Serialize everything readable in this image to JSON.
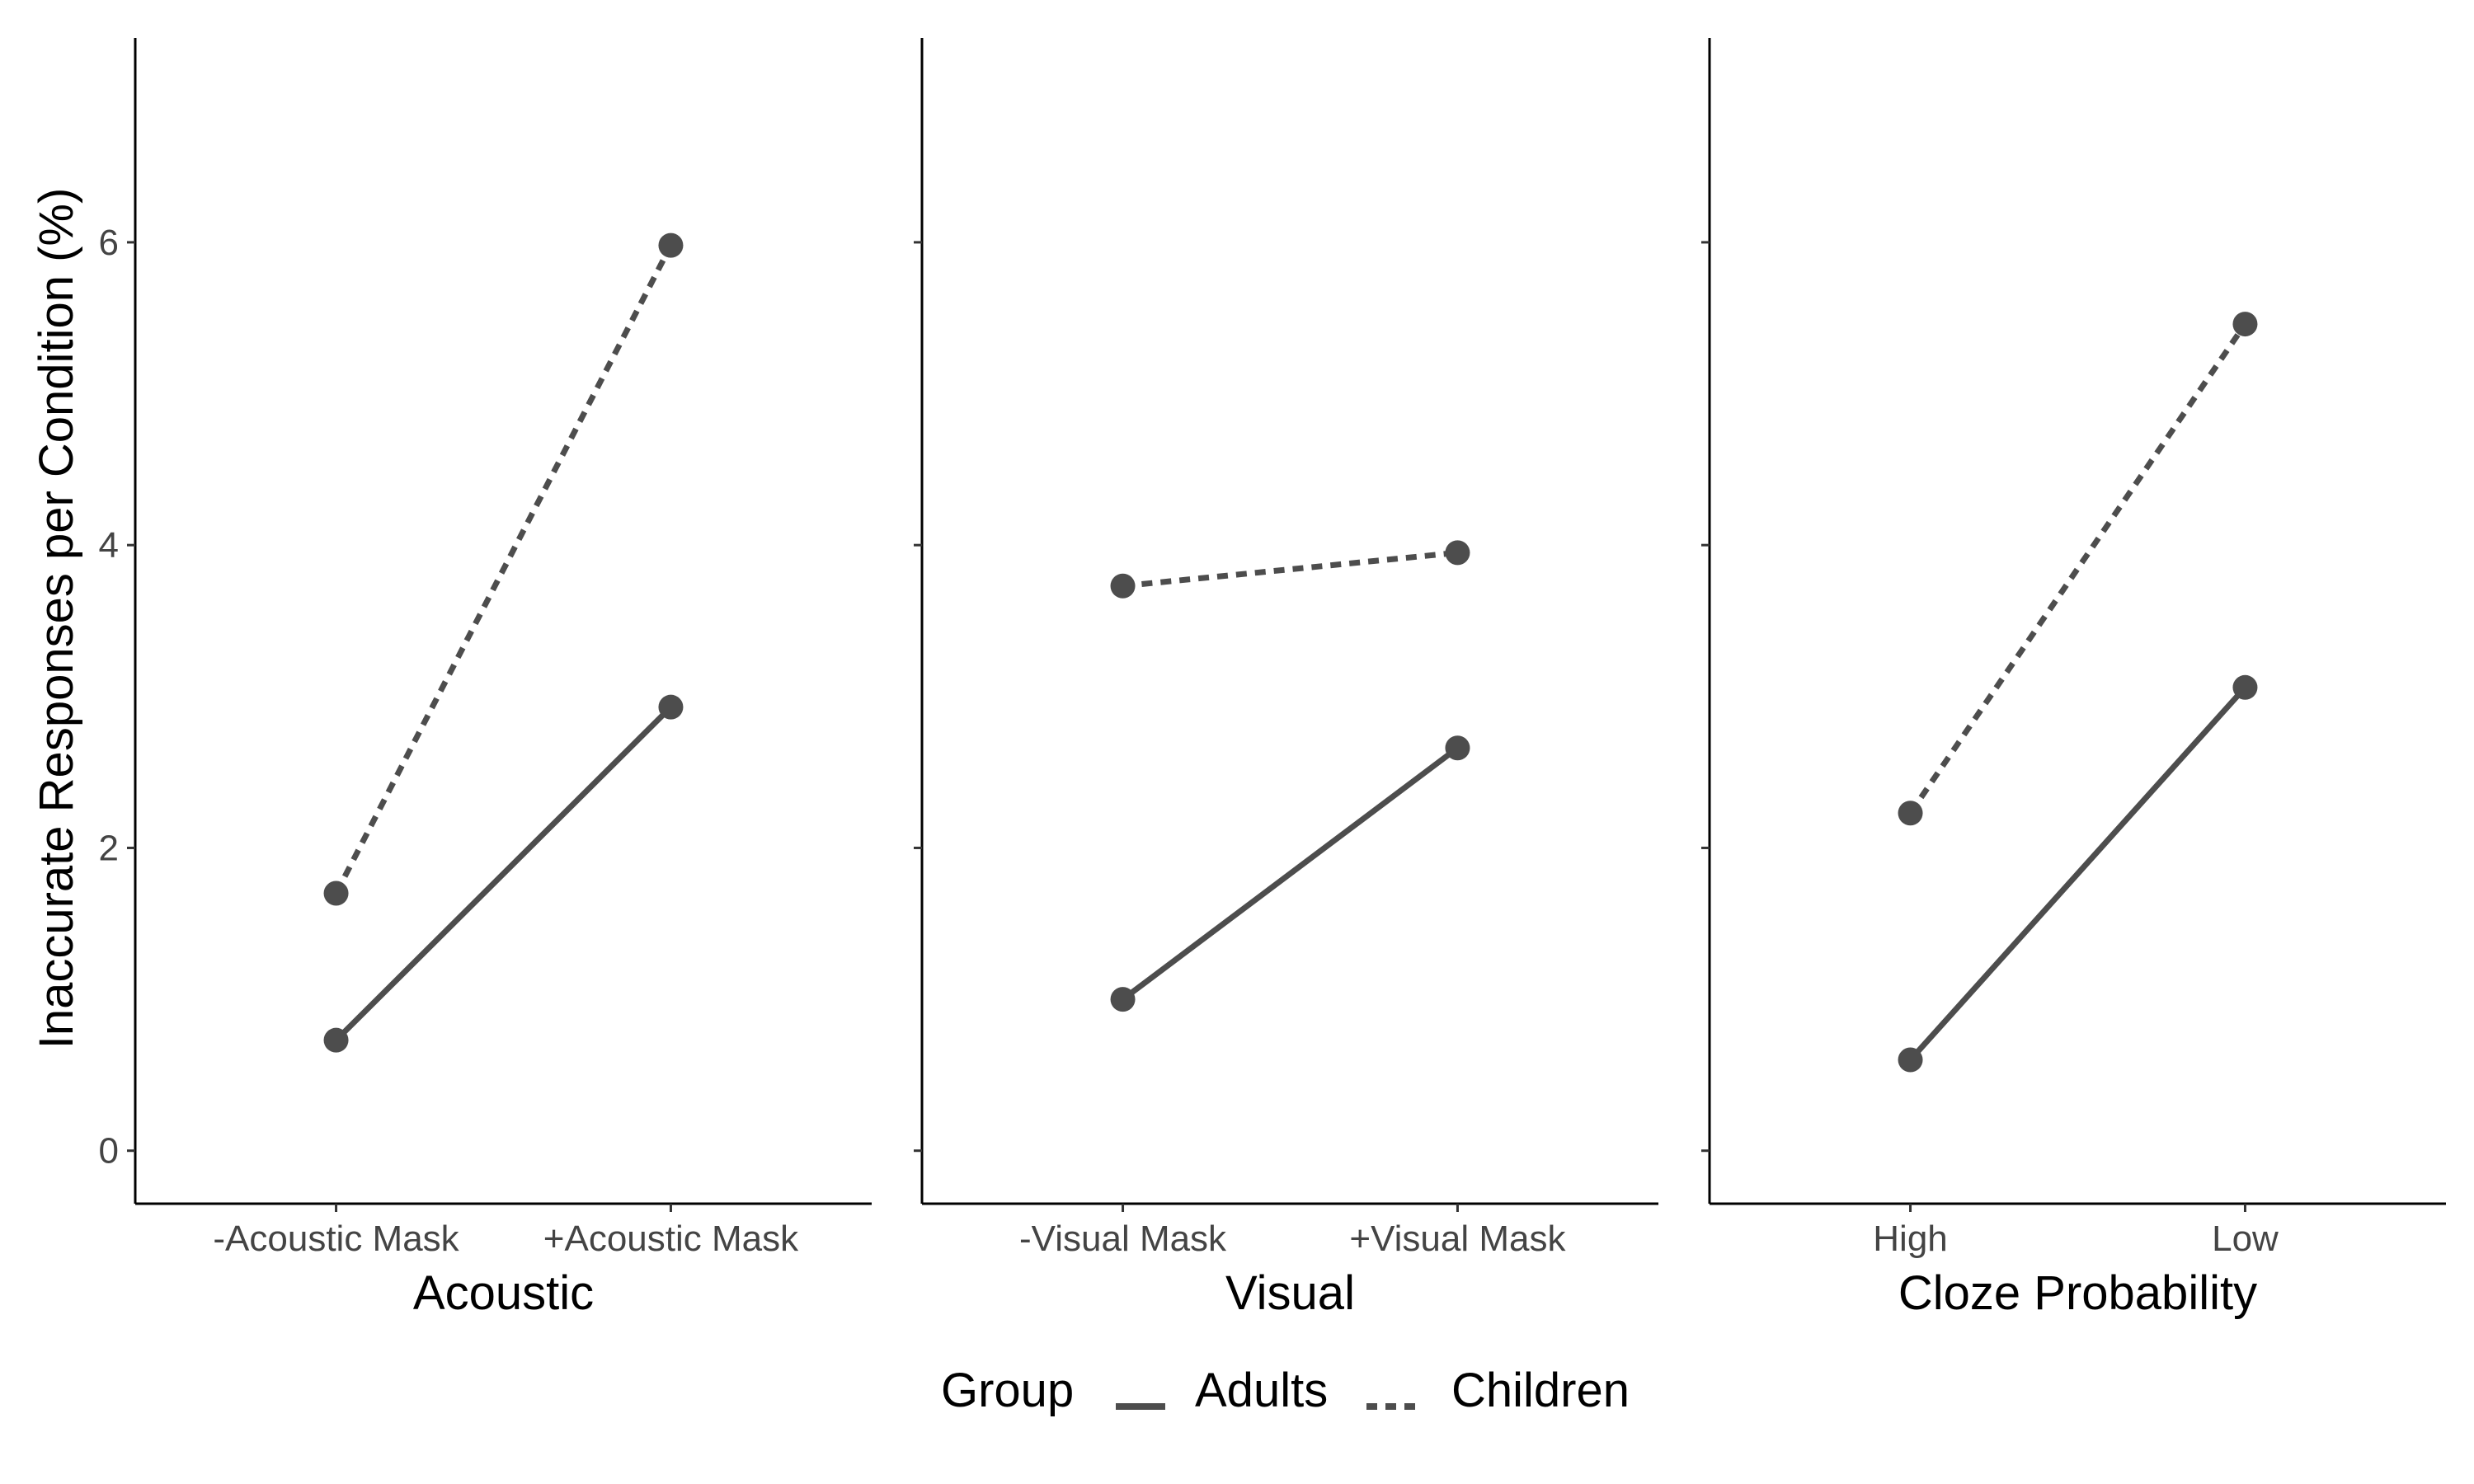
{
  "chart_data": {
    "type": "line",
    "ylabel": "Inaccurate Responses per Condition (%)",
    "ylim": [
      -0.35,
      7.35
    ],
    "yticks": [
      "0",
      "2",
      "4",
      "6"
    ],
    "grid": false,
    "series_color": "#4d4d4d",
    "legend": {
      "title": "Group",
      "position": "bottom",
      "entries": [
        {
          "name": "Adults",
          "linestyle": "solid"
        },
        {
          "name": "Children",
          "linestyle": "dashed"
        }
      ]
    },
    "panels": [
      {
        "xlabel": "Acoustic",
        "categories": [
          "-Acoustic Mask",
          "+Acoustic Mask"
        ],
        "series": [
          {
            "name": "Adults",
            "values": [
              0.73,
              2.93
            ]
          },
          {
            "name": "Children",
            "values": [
              1.7,
              5.98
            ]
          }
        ]
      },
      {
        "xlabel": "Visual",
        "categories": [
          "-Visual Mask",
          "+Visual Mask"
        ],
        "series": [
          {
            "name": "Adults",
            "values": [
              1.0,
              2.66
            ]
          },
          {
            "name": "Children",
            "values": [
              3.73,
              3.95
            ]
          }
        ]
      },
      {
        "xlabel": "Cloze Probability",
        "categories": [
          "High",
          "Low"
        ],
        "series": [
          {
            "name": "Adults",
            "values": [
              0.6,
              3.06
            ]
          },
          {
            "name": "Children",
            "values": [
              2.23,
              5.46
            ]
          }
        ]
      }
    ]
  }
}
